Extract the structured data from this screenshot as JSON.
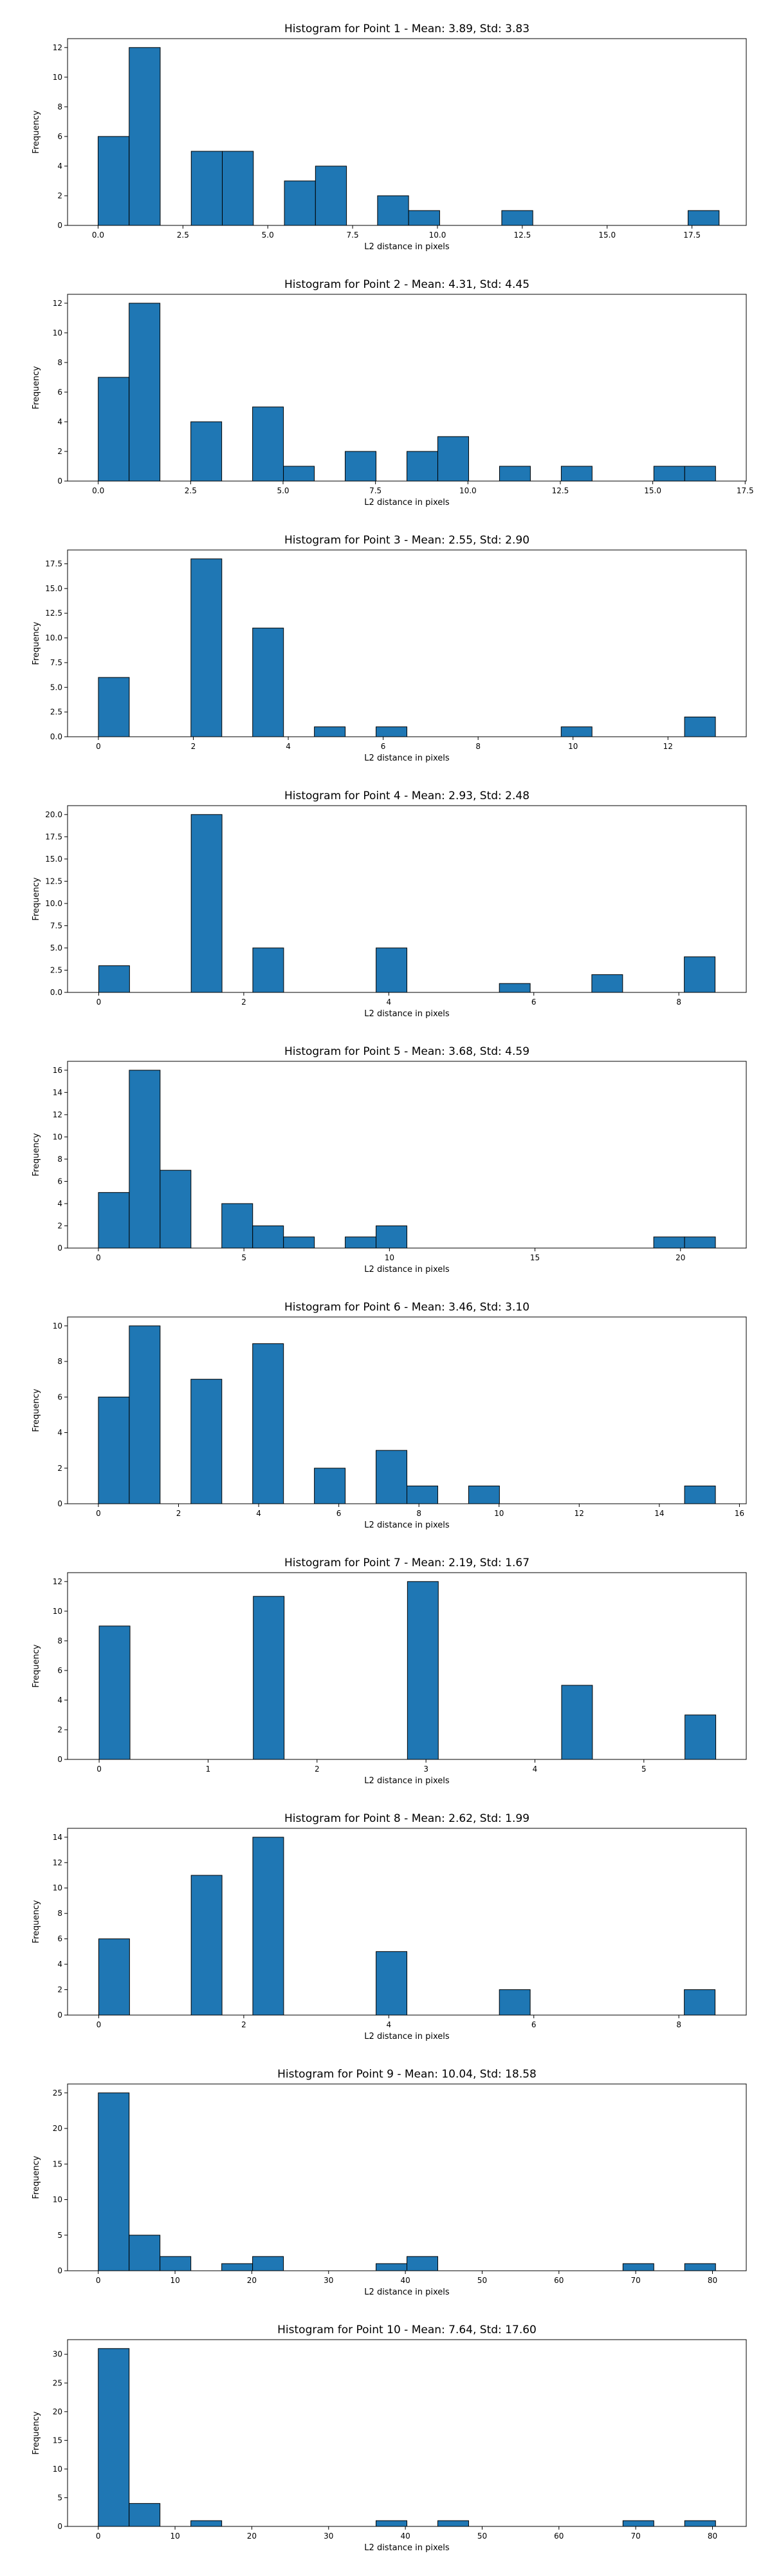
{
  "style": {
    "bar_color": "#1f77b4",
    "edge_color": "#000000",
    "background": "#ffffff"
  },
  "chart_data": [
    {
      "type": "bar",
      "title": "Histogram for Point 1 - Mean: 3.89, Std: 3.83",
      "xlabel": "L2 distance in pixels",
      "ylabel": "Frequency",
      "xlim": [
        -0.9,
        19.1
      ],
      "ylim": [
        0,
        12.6
      ],
      "xticks": [
        0.0,
        2.5,
        5.0,
        7.5,
        10.0,
        12.5,
        15.0,
        17.5
      ],
      "xtick_labels": [
        "0.0",
        "2.5",
        "5.0",
        "7.5",
        "10.0",
        "12.5",
        "15.0",
        "17.5"
      ],
      "yticks": [
        0,
        2,
        4,
        6,
        8,
        10,
        12
      ],
      "ytick_labels": [
        "0",
        "2",
        "4",
        "6",
        "8",
        "10",
        "12"
      ],
      "bin_edges": [
        0.0,
        0.915,
        1.83,
        2.745,
        3.66,
        4.575,
        5.49,
        6.405,
        7.32,
        8.235,
        9.15,
        10.065,
        10.98,
        11.895,
        12.81,
        13.725,
        14.64,
        15.555,
        16.47,
        17.385,
        18.3
      ],
      "values": [
        6,
        12,
        0,
        5,
        5,
        0,
        3,
        4,
        0,
        2,
        1,
        0,
        0,
        1,
        0,
        0,
        0,
        0,
        0,
        1
      ]
    },
    {
      "type": "bar",
      "title": "Histogram for Point 2 - Mean: 4.31, Std: 4.45",
      "xlabel": "L2 distance in pixels",
      "ylabel": "Frequency",
      "xlim": [
        -0.83,
        17.53
      ],
      "ylim": [
        0,
        12.6
      ],
      "xticks": [
        0.0,
        2.5,
        5.0,
        7.5,
        10.0,
        12.5,
        15.0,
        17.5
      ],
      "xtick_labels": [
        "0.0",
        "2.5",
        "5.0",
        "7.5",
        "10.0",
        "12.5",
        "15.0",
        "17.5"
      ],
      "yticks": [
        0,
        2,
        4,
        6,
        8,
        10,
        12
      ],
      "ytick_labels": [
        "0",
        "2",
        "4",
        "6",
        "8",
        "10",
        "12"
      ],
      "bin_edges": [
        0.0,
        0.835,
        1.67,
        2.505,
        3.34,
        4.175,
        5.01,
        5.845,
        6.68,
        7.515,
        8.35,
        9.185,
        10.02,
        10.855,
        11.69,
        12.525,
        13.36,
        14.195,
        15.03,
        15.865,
        16.7
      ],
      "values": [
        7,
        12,
        0,
        4,
        0,
        5,
        1,
        0,
        2,
        0,
        2,
        3,
        0,
        1,
        0,
        1,
        0,
        0,
        1,
        1
      ]
    },
    {
      "type": "bar",
      "title": "Histogram for Point 3 - Mean: 2.55, Std: 2.90",
      "xlabel": "L2 distance in pixels",
      "ylabel": "Frequency",
      "xlim": [
        -0.65,
        13.65
      ],
      "ylim": [
        0,
        18.9
      ],
      "xticks": [
        0,
        2,
        4,
        6,
        8,
        10,
        12
      ],
      "xtick_labels": [
        "0",
        "2",
        "4",
        "6",
        "8",
        "10",
        "12"
      ],
      "yticks": [
        0,
        2.5,
        5.0,
        7.5,
        10.0,
        12.5,
        15.0,
        17.5
      ],
      "ytick_labels": [
        "0.0",
        "2.5",
        "5.0",
        "7.5",
        "10.0",
        "12.5",
        "15.0",
        "17.5"
      ],
      "bin_edges": [
        0.0,
        0.65,
        1.3,
        1.95,
        2.6,
        3.25,
        3.9,
        4.55,
        5.2,
        5.85,
        6.5,
        7.15,
        7.8,
        8.45,
        9.1,
        9.75,
        10.4,
        11.05,
        11.7,
        12.35,
        13.0
      ],
      "values": [
        6,
        0,
        0,
        18,
        0,
        11,
        0,
        1,
        0,
        1,
        0,
        0,
        0,
        0,
        0,
        1,
        0,
        0,
        0,
        2
      ]
    },
    {
      "type": "bar",
      "title": "Histogram for Point 4 - Mean: 2.93, Std: 2.48",
      "xlabel": "L2 distance in pixels",
      "ylabel": "Frequency",
      "xlim": [
        -0.43,
        8.93
      ],
      "ylim": [
        0,
        21
      ],
      "xticks": [
        0,
        2,
        4,
        6,
        8
      ],
      "xtick_labels": [
        "0",
        "2",
        "4",
        "6",
        "8"
      ],
      "yticks": [
        0,
        2.5,
        5.0,
        7.5,
        10.0,
        12.5,
        15.0,
        17.5,
        20.0
      ],
      "ytick_labels": [
        "0.0",
        "2.5",
        "5.0",
        "7.5",
        "10.0",
        "12.5",
        "15.0",
        "17.5",
        "20.0"
      ],
      "bin_edges": [
        0.0,
        0.425,
        0.85,
        1.275,
        1.7,
        2.125,
        2.55,
        2.975,
        3.4,
        3.825,
        4.25,
        4.675,
        5.1,
        5.525,
        5.95,
        6.375,
        6.8,
        7.225,
        7.65,
        8.075,
        8.5
      ],
      "values": [
        3,
        0,
        0,
        20,
        0,
        5,
        0,
        0,
        0,
        5,
        0,
        0,
        0,
        1,
        0,
        0,
        2,
        0,
        0,
        4
      ]
    },
    {
      "type": "bar",
      "title": "Histogram for Point 5 - Mean: 3.68, Std: 4.59",
      "xlabel": "L2 distance in pixels",
      "ylabel": "Frequency",
      "xlim": [
        -1.06,
        22.26
      ],
      "ylim": [
        0,
        16.8
      ],
      "xticks": [
        0,
        5,
        10,
        15,
        20
      ],
      "xtick_labels": [
        "0",
        "5",
        "10",
        "15",
        "20"
      ],
      "yticks": [
        0,
        2,
        4,
        6,
        8,
        10,
        12,
        14,
        16
      ],
      "ytick_labels": [
        "0",
        "2",
        "4",
        "6",
        "8",
        "10",
        "12",
        "14",
        "16"
      ],
      "bin_edges": [
        0.0,
        1.06,
        2.12,
        3.18,
        4.24,
        5.3,
        6.36,
        7.42,
        8.48,
        9.54,
        10.6,
        11.66,
        12.72,
        13.78,
        14.84,
        15.9,
        16.96,
        18.02,
        19.08,
        20.14,
        21.2
      ],
      "values": [
        5,
        16,
        7,
        0,
        4,
        2,
        1,
        0,
        1,
        2,
        0,
        0,
        0,
        0,
        0,
        0,
        0,
        0,
        1,
        1
      ]
    },
    {
      "type": "bar",
      "title": "Histogram for Point 6 - Mean: 3.46, Std: 3.10",
      "xlabel": "L2 distance in pixels",
      "ylabel": "Frequency",
      "xlim": [
        -0.77,
        16.17
      ],
      "ylim": [
        0,
        10.5
      ],
      "xticks": [
        0,
        2,
        4,
        6,
        8,
        10,
        12,
        14,
        16
      ],
      "xtick_labels": [
        "0",
        "2",
        "4",
        "6",
        "8",
        "10",
        "12",
        "14",
        "16"
      ],
      "yticks": [
        0,
        2,
        4,
        6,
        8,
        10
      ],
      "ytick_labels": [
        "0",
        "2",
        "4",
        "6",
        "8",
        "10"
      ],
      "bin_edges": [
        0.0,
        0.77,
        1.54,
        2.31,
        3.08,
        3.85,
        4.62,
        5.39,
        6.16,
        6.93,
        7.7,
        8.47,
        9.24,
        10.01,
        10.78,
        11.55,
        12.32,
        13.09,
        13.86,
        14.63,
        15.4
      ],
      "values": [
        6,
        10,
        0,
        7,
        0,
        9,
        0,
        2,
        0,
        3,
        1,
        0,
        1,
        0,
        0,
        0,
        0,
        0,
        0,
        1
      ]
    },
    {
      "type": "bar",
      "title": "Histogram for Point 7 - Mean: 2.19, Std: 1.67",
      "xlabel": "L2 distance in pixels",
      "ylabel": "Frequency",
      "xlim": [
        -0.29,
        5.94
      ],
      "ylim": [
        0,
        12.6
      ],
      "xticks": [
        0,
        1,
        2,
        3,
        4,
        5
      ],
      "xtick_labels": [
        "0",
        "1",
        "2",
        "3",
        "4",
        "5"
      ],
      "yticks": [
        0,
        2,
        4,
        6,
        8,
        10,
        12
      ],
      "ytick_labels": [
        "0",
        "2",
        "4",
        "6",
        "8",
        "10",
        "12"
      ],
      "bin_edges": [
        0.0,
        0.283,
        0.566,
        0.849,
        1.132,
        1.415,
        1.698,
        1.981,
        2.264,
        2.547,
        2.83,
        3.113,
        3.396,
        3.679,
        3.962,
        4.245,
        4.528,
        4.811,
        5.094,
        5.377,
        5.66
      ],
      "values": [
        9,
        0,
        0,
        0,
        0,
        11,
        0,
        0,
        0,
        0,
        12,
        0,
        0,
        0,
        0,
        5,
        0,
        0,
        0,
        3
      ]
    },
    {
      "type": "bar",
      "title": "Histogram for Point 8 - Mean: 2.62, Std: 1.99",
      "xlabel": "L2 distance in pixels",
      "ylabel": "Frequency",
      "xlim": [
        -0.43,
        8.93
      ],
      "ylim": [
        0,
        14.7
      ],
      "xticks": [
        0,
        2,
        4,
        6,
        8
      ],
      "xtick_labels": [
        "0",
        "2",
        "4",
        "6",
        "8"
      ],
      "yticks": [
        0,
        2,
        4,
        6,
        8,
        10,
        12,
        14
      ],
      "ytick_labels": [
        "0",
        "2",
        "4",
        "6",
        "8",
        "10",
        "12",
        "14"
      ],
      "bin_edges": [
        0.0,
        0.425,
        0.85,
        1.275,
        1.7,
        2.125,
        2.55,
        2.975,
        3.4,
        3.825,
        4.25,
        4.675,
        5.1,
        5.525,
        5.95,
        6.375,
        6.8,
        7.225,
        7.65,
        8.075,
        8.5
      ],
      "values": [
        6,
        0,
        0,
        11,
        0,
        14,
        0,
        0,
        0,
        5,
        0,
        0,
        0,
        2,
        0,
        0,
        0,
        0,
        0,
        2
      ]
    },
    {
      "type": "bar",
      "title": "Histogram for Point 9 - Mean: 10.04, Std: 18.58",
      "xlabel": "L2 distance in pixels",
      "ylabel": "Frequency",
      "xlim": [
        -4.0,
        84.4
      ],
      "ylim": [
        0,
        26.25
      ],
      "xticks": [
        0,
        10,
        20,
        30,
        40,
        50,
        60,
        70,
        80
      ],
      "xtick_labels": [
        "0",
        "10",
        "20",
        "30",
        "40",
        "50",
        "60",
        "70",
        "80"
      ],
      "yticks": [
        0,
        5,
        10,
        15,
        20,
        25
      ],
      "ytick_labels": [
        "0",
        "5",
        "10",
        "15",
        "20",
        "25"
      ],
      "bin_edges": [
        0.0,
        4.02,
        8.04,
        12.06,
        16.08,
        20.1,
        24.12,
        28.14,
        32.16,
        36.18,
        40.2,
        44.22,
        48.24,
        52.26,
        56.28,
        60.3,
        64.32,
        68.34,
        72.36,
        76.38,
        80.4
      ],
      "values": [
        25,
        5,
        2,
        0,
        1,
        2,
        0,
        0,
        0,
        1,
        2,
        0,
        0,
        0,
        0,
        0,
        0,
        1,
        0,
        1
      ]
    },
    {
      "type": "bar",
      "title": "Histogram for Point 10 - Mean: 7.64, Std: 17.60",
      "xlabel": "L2 distance in pixels",
      "ylabel": "Frequency",
      "xlim": [
        -4.0,
        84.4
      ],
      "ylim": [
        0,
        32.55
      ],
      "xticks": [
        0,
        10,
        20,
        30,
        40,
        50,
        60,
        70,
        80
      ],
      "xtick_labels": [
        "0",
        "10",
        "20",
        "30",
        "40",
        "50",
        "60",
        "70",
        "80"
      ],
      "yticks": [
        0,
        5,
        10,
        15,
        20,
        25,
        30
      ],
      "ytick_labels": [
        "0",
        "5",
        "10",
        "15",
        "20",
        "25",
        "30"
      ],
      "bin_edges": [
        0.0,
        4.02,
        8.04,
        12.06,
        16.08,
        20.1,
        24.12,
        28.14,
        32.16,
        36.18,
        40.2,
        44.22,
        48.24,
        52.26,
        56.28,
        60.3,
        64.32,
        68.34,
        72.36,
        76.38,
        80.4
      ],
      "values": [
        31,
        4,
        0,
        1,
        0,
        0,
        0,
        0,
        0,
        1,
        0,
        1,
        0,
        0,
        0,
        0,
        0,
        1,
        0,
        1
      ]
    }
  ]
}
